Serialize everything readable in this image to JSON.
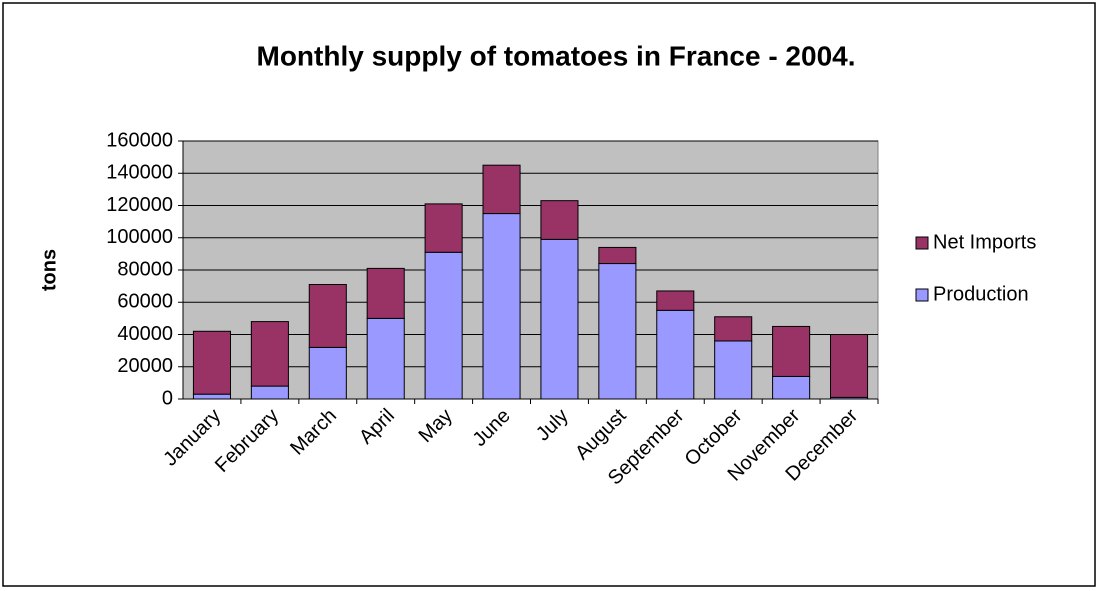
{
  "chart_data": {
    "type": "stacked-bar",
    "title": "Monthly supply of tomatoes in France - 2004.",
    "y_label": "tons",
    "categories": [
      "January",
      "February",
      "March",
      "April",
      "May",
      "June",
      "July",
      "August",
      "September",
      "October",
      "November",
      "December"
    ],
    "series": [
      {
        "name": "Production",
        "color": "#9999ff",
        "values": [
          3000,
          8000,
          32000,
          50000,
          91000,
          115000,
          99000,
          84000,
          55000,
          36000,
          14000,
          1000
        ]
      },
      {
        "name": "Net Imports",
        "color": "#993366",
        "values": [
          39000,
          40000,
          39000,
          31000,
          30000,
          30000,
          24000,
          10000,
          12000,
          15000,
          31000,
          39000
        ]
      }
    ],
    "ylim": [
      0,
      160000
    ],
    "yticks": [
      0,
      20000,
      40000,
      60000,
      80000,
      100000,
      120000,
      140000,
      160000
    ],
    "grid": true,
    "plot_background": "#c0c0c0",
    "legend": "right"
  }
}
